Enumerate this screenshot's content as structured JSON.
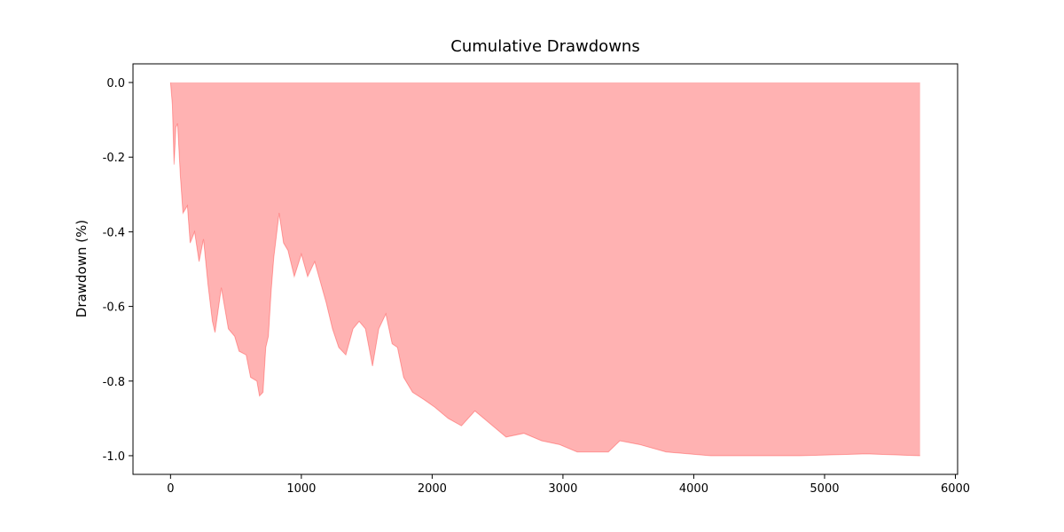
{
  "chart_data": {
    "type": "area",
    "title": "Cumulative Drawdowns",
    "y_label": "Drawdown (%)",
    "color": "#ff0000",
    "x": [
      0,
      14,
      27,
      41,
      54,
      75,
      95,
      129,
      150,
      184,
      218,
      252,
      286,
      320,
      340,
      388,
      442,
      490,
      524,
      578,
      612,
      660,
      680,
      707,
      728,
      748,
      769,
      789,
      830,
      864,
      898,
      946,
      1000,
      1048,
      1102,
      1150,
      1190,
      1238,
      1286,
      1340,
      1395,
      1442,
      1490,
      1544,
      1592,
      1646,
      1694,
      1735,
      1782,
      1850,
      1939,
      2020,
      2122,
      2224,
      2327,
      2429,
      2565,
      2701,
      2837,
      2973,
      3109,
      3245,
      3347,
      3435,
      3585,
      3789,
      4129,
      4810,
      5320,
      5730
    ],
    "values": [
      0,
      -0.06,
      -0.22,
      -0.12,
      -0.11,
      -0.25,
      -0.35,
      -0.33,
      -0.43,
      -0.4,
      -0.48,
      -0.42,
      -0.54,
      -0.64,
      -0.67,
      -0.55,
      -0.66,
      -0.68,
      -0.72,
      -0.73,
      -0.79,
      -0.8,
      -0.84,
      -0.83,
      -0.71,
      -0.68,
      -0.56,
      -0.47,
      -0.35,
      -0.43,
      -0.45,
      -0.52,
      -0.46,
      -0.52,
      -0.48,
      -0.54,
      -0.59,
      -0.66,
      -0.71,
      -0.73,
      -0.66,
      -0.64,
      -0.66,
      -0.76,
      -0.66,
      -0.62,
      -0.7,
      -0.71,
      -0.79,
      -0.83,
      -0.85,
      -0.87,
      -0.9,
      -0.92,
      -0.88,
      -0.91,
      -0.95,
      -0.94,
      -0.96,
      -0.97,
      -0.99,
      -0.99,
      -0.99,
      -0.96,
      -0.97,
      -0.99,
      -1.0,
      -1.0,
      -0.995,
      -1.0
    ],
    "xlim": [
      -287,
      6017
    ],
    "ylim": [
      -1.05,
      0.05
    ],
    "xticks": [
      0,
      1000,
      2000,
      3000,
      4000,
      5000,
      6000
    ],
    "yticks": [
      {
        "value": 0,
        "label": "0.0"
      },
      -0.2,
      -0.4,
      -0.6,
      -0.8,
      {
        "value": -1,
        "label": "-1.0"
      }
    ]
  }
}
